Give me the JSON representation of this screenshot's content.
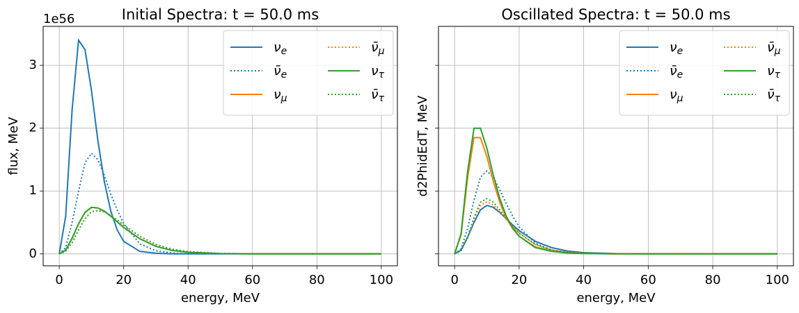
{
  "chart_data": [
    {
      "type": "line",
      "title": "Initial Spectra: t = 50.0 ms",
      "x_label": "energy, MeV",
      "y_label": "flux, MeV",
      "offset_label": "1e56",
      "x": [
        0,
        2,
        4,
        6,
        8,
        10,
        12,
        14,
        16,
        18,
        20,
        25,
        30,
        35,
        40,
        50,
        60,
        70,
        80,
        90,
        100
      ],
      "xlim": [
        -5,
        105
      ],
      "ylim": [
        -0.19,
        3.62
      ],
      "xticks": [
        0,
        20,
        40,
        60,
        80,
        100
      ],
      "yticks": [
        0,
        1,
        2,
        3
      ],
      "show_ytick_labels": true,
      "grid": true,
      "legend": "upper right",
      "legend_columns": 2,
      "series": [
        {
          "name": "ν_e",
          "color": "#1f77b4",
          "dash": "solid",
          "values": [
            0,
            0.6,
            2.3,
            3.4,
            3.25,
            2.6,
            1.8,
            1.15,
            0.68,
            0.38,
            0.2,
            0.04,
            0.01,
            0,
            0,
            0,
            0,
            0,
            0,
            0,
            0
          ]
        },
        {
          "name": "ν̄_e",
          "color": "#1f77b4",
          "dash": "dotted",
          "values": [
            0,
            0.1,
            0.5,
            1.0,
            1.45,
            1.6,
            1.5,
            1.25,
            0.95,
            0.7,
            0.48,
            0.16,
            0.05,
            0.015,
            0,
            0,
            0,
            0,
            0,
            0,
            0
          ]
        },
        {
          "name": "ν_μ",
          "color": "#ff7f0e",
          "dash": "solid",
          "values": [
            0,
            0.06,
            0.25,
            0.48,
            0.66,
            0.74,
            0.73,
            0.68,
            0.6,
            0.51,
            0.42,
            0.24,
            0.12,
            0.055,
            0.025,
            0.005,
            0.001,
            0,
            0,
            0,
            0
          ]
        },
        {
          "name": "ν̄_μ",
          "color": "#ff7f0e",
          "dash": "dotted",
          "values": [
            0,
            0.04,
            0.18,
            0.38,
            0.56,
            0.67,
            0.69,
            0.67,
            0.61,
            0.54,
            0.46,
            0.28,
            0.15,
            0.075,
            0.035,
            0.007,
            0.001,
            0,
            0,
            0,
            0
          ]
        },
        {
          "name": "ν_τ",
          "color": "#2ca02c",
          "dash": "solid",
          "values": [
            0,
            0.06,
            0.25,
            0.48,
            0.66,
            0.74,
            0.73,
            0.68,
            0.6,
            0.51,
            0.42,
            0.24,
            0.12,
            0.055,
            0.025,
            0.005,
            0.001,
            0,
            0,
            0,
            0
          ]
        },
        {
          "name": "ν̄_τ",
          "color": "#2ca02c",
          "dash": "dotted",
          "values": [
            0,
            0.04,
            0.18,
            0.38,
            0.56,
            0.67,
            0.69,
            0.67,
            0.61,
            0.54,
            0.46,
            0.28,
            0.15,
            0.075,
            0.035,
            0.007,
            0.001,
            0,
            0,
            0,
            0
          ]
        }
      ]
    },
    {
      "type": "line",
      "title": "Oscillated Spectra: t = 50.0 ms",
      "x_label": "energy, MeV",
      "y_label": "d2PhidEdT, MeV",
      "x": [
        0,
        2,
        4,
        6,
        8,
        10,
        12,
        14,
        16,
        18,
        20,
        25,
        30,
        35,
        40,
        50,
        60,
        70,
        80,
        90,
        100
      ],
      "xlim": [
        -5,
        105
      ],
      "ylim": [
        -0.19,
        3.62
      ],
      "xticks": [
        0,
        20,
        40,
        60,
        80,
        100
      ],
      "yticks": [
        0,
        1,
        2,
        3
      ],
      "show_ytick_labels": false,
      "grid": true,
      "legend": "upper right",
      "legend_columns": 2,
      "series": [
        {
          "name": "ν_e",
          "color": "#1f77b4",
          "dash": "solid",
          "values": [
            0,
            0.06,
            0.26,
            0.5,
            0.7,
            0.77,
            0.74,
            0.66,
            0.56,
            0.46,
            0.37,
            0.2,
            0.1,
            0.045,
            0.02,
            0.004,
            0,
            0,
            0,
            0,
            0
          ]
        },
        {
          "name": "ν̄_e",
          "color": "#1f77b4",
          "dash": "dotted",
          "values": [
            0,
            0.08,
            0.4,
            0.85,
            1.22,
            1.32,
            1.22,
            1.02,
            0.8,
            0.6,
            0.43,
            0.17,
            0.06,
            0.02,
            0.006,
            0,
            0,
            0,
            0,
            0,
            0
          ]
        },
        {
          "name": "ν_μ",
          "color": "#ff7f0e",
          "dash": "solid",
          "values": [
            0,
            0.3,
            1.2,
            1.85,
            1.85,
            1.55,
            1.15,
            0.82,
            0.57,
            0.4,
            0.28,
            0.11,
            0.045,
            0.018,
            0.007,
            0,
            0,
            0,
            0,
            0,
            0
          ]
        },
        {
          "name": "ν̄_μ",
          "color": "#ff7f0e",
          "dash": "dotted",
          "values": [
            0,
            0.05,
            0.25,
            0.55,
            0.77,
            0.83,
            0.78,
            0.67,
            0.55,
            0.43,
            0.33,
            0.15,
            0.06,
            0.025,
            0.01,
            0.002,
            0,
            0,
            0,
            0,
            0
          ]
        },
        {
          "name": "ν_τ",
          "color": "#2ca02c",
          "dash": "solid",
          "values": [
            0,
            0.32,
            1.3,
            2.0,
            2.0,
            1.68,
            1.25,
            0.88,
            0.6,
            0.41,
            0.28,
            0.1,
            0.04,
            0.015,
            0.005,
            0,
            0,
            0,
            0,
            0,
            0
          ]
        },
        {
          "name": "ν̄_τ",
          "color": "#2ca02c",
          "dash": "dotted",
          "values": [
            0,
            0.05,
            0.27,
            0.58,
            0.82,
            0.88,
            0.82,
            0.7,
            0.57,
            0.44,
            0.33,
            0.15,
            0.06,
            0.025,
            0.01,
            0.002,
            0,
            0,
            0,
            0,
            0
          ]
        }
      ]
    }
  ]
}
